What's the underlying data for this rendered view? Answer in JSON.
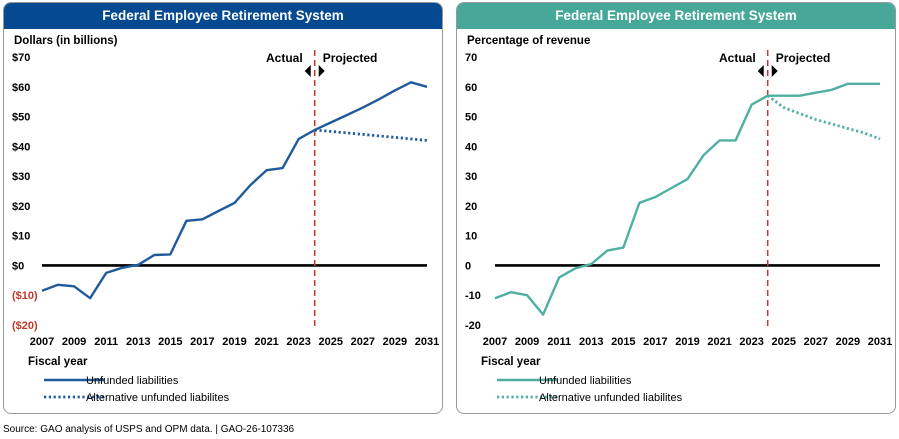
{
  "footer": {
    "source": "Source: GAO analysis of USPS and OPM data.  |  GAO-26-107336"
  },
  "chart_data": [
    {
      "type": "line",
      "title": "Federal Employee Retirement System",
      "header_color": "#054a91",
      "ylabel": "Dollars (in billions)",
      "xlabel": "Fiscal year",
      "ylim": [
        -20,
        70
      ],
      "yticks": [
        70,
        60,
        50,
        40,
        30,
        20,
        10,
        0,
        -10,
        -20
      ],
      "ytick_labels": [
        "$70",
        "$60",
        "$50",
        "$40",
        "$30",
        "$20",
        "$10",
        "$0",
        "($10)",
        "($20)"
      ],
      "negative_label_color": "#c0392b",
      "xlim": [
        2007,
        2031
      ],
      "xticks": [
        2007,
        2009,
        2011,
        2013,
        2015,
        2017,
        2019,
        2021,
        2023,
        2025,
        2027,
        2029,
        2031
      ],
      "divider_x": 2024,
      "divider_color": "#c0392b",
      "actual_label": "Actual",
      "projected_label": "Projected",
      "series": [
        {
          "name": "Unfunded liabilities",
          "style": "solid",
          "color": "#1f5b9c",
          "x": [
            2007,
            2008,
            2009,
            2010,
            2011,
            2012,
            2013,
            2014,
            2015,
            2016,
            2017,
            2018,
            2019,
            2020,
            2021,
            2022,
            2023,
            2024,
            2025,
            2026,
            2027,
            2028,
            2029,
            2030,
            2031
          ],
          "y": [
            -8.5,
            -6.5,
            -7,
            -11,
            -2.5,
            -0.8,
            0.2,
            3.5,
            3.7,
            15,
            15.5,
            18.3,
            21,
            27,
            32,
            32.7,
            42.5,
            45.5,
            48,
            50.5,
            53,
            55.8,
            58.8,
            61.5,
            60
          ]
        },
        {
          "name": "Alternative unfunded liabilites",
          "style": "dotted",
          "color": "#1f5b9c",
          "x": [
            2024,
            2025,
            2026,
            2027,
            2028,
            2029,
            2030,
            2031
          ],
          "y": [
            45.5,
            45,
            44.5,
            44,
            43.5,
            43,
            42.5,
            42
          ]
        }
      ]
    },
    {
      "type": "line",
      "title": "Federal Employee Retirement System",
      "header_color": "#47a89a",
      "ylabel": "Percentage of revenue",
      "xlabel": "Fiscal year",
      "ylim": [
        -20,
        70
      ],
      "yticks": [
        70,
        60,
        50,
        40,
        30,
        20,
        10,
        0,
        -10,
        -20
      ],
      "ytick_labels": [
        "70",
        "60",
        "50",
        "40",
        "30",
        "20",
        "10",
        "0",
        "-10",
        "-20"
      ],
      "negative_label_color": "#000000",
      "xlim": [
        2007,
        2031
      ],
      "xticks": [
        2007,
        2009,
        2011,
        2013,
        2015,
        2017,
        2019,
        2021,
        2023,
        2025,
        2027,
        2029,
        2031
      ],
      "divider_x": 2024,
      "divider_color": "#c0392b",
      "actual_label": "Actual",
      "projected_label": "Projected",
      "series": [
        {
          "name": "Unfunded liabilities",
          "style": "solid",
          "color": "#4fb0a2",
          "x": [
            2007,
            2008,
            2009,
            2010,
            2011,
            2012,
            2013,
            2014,
            2015,
            2016,
            2017,
            2018,
            2019,
            2020,
            2021,
            2022,
            2023,
            2024,
            2025,
            2026,
            2027,
            2028,
            2029,
            2030,
            2031
          ],
          "y": [
            -11,
            -9,
            -10,
            -16.5,
            -4,
            -1,
            0.5,
            5,
            6,
            21,
            23,
            26,
            29,
            37,
            42,
            42,
            54,
            57,
            57,
            57,
            58,
            59,
            61,
            61,
            61
          ]
        },
        {
          "name": "Alternative unfunded liabilites",
          "style": "dotted",
          "color": "#4fb0a2",
          "x": [
            2024,
            2025,
            2026,
            2027,
            2028,
            2029,
            2030,
            2031
          ],
          "y": [
            57,
            53,
            51,
            49,
            47.5,
            46,
            44.5,
            42.5
          ]
        }
      ]
    }
  ]
}
